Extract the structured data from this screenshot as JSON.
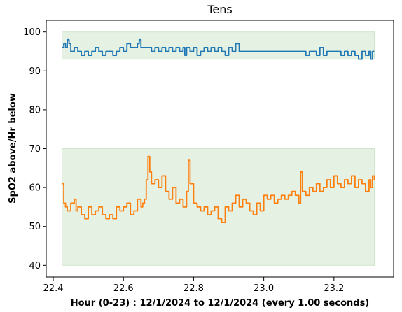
{
  "chart_data": {
    "type": "line",
    "title": "Tens",
    "xlabel": "Hour (0-23) : 12/1/2024 to 12/1/2024 (every 1.00 seconds)",
    "ylabel": "SpO2 above/Hr below",
    "xlim": [
      22.38,
      23.37
    ],
    "ylim": [
      37,
      103
    ],
    "xticks": [
      22.4,
      22.6,
      22.8,
      23.0,
      23.2
    ],
    "xtick_labels": [
      "22.4",
      "22.6",
      "22.8",
      "23.0",
      "23.2"
    ],
    "yticks": [
      40,
      50,
      60,
      70,
      80,
      90,
      100
    ],
    "ytick_labels": [
      "40",
      "50",
      "60",
      "70",
      "80",
      "90",
      "100"
    ],
    "grid": false,
    "bands": [
      {
        "x0": 22.425,
        "x1": 23.315,
        "y0": 93,
        "y1": 100,
        "color": "#e5f1e3"
      },
      {
        "x0": 22.425,
        "x1": 23.315,
        "y0": 40,
        "y1": 70,
        "color": "#e5f1e3"
      }
    ],
    "series": [
      {
        "color": "#1f77b4",
        "points": [
          [
            22.425,
            96
          ],
          [
            22.43,
            97
          ],
          [
            22.435,
            96
          ],
          [
            22.44,
            98
          ],
          [
            22.445,
            97
          ],
          [
            22.45,
            95
          ],
          [
            22.46,
            96
          ],
          [
            22.47,
            95
          ],
          [
            22.48,
            94
          ],
          [
            22.49,
            95
          ],
          [
            22.5,
            94
          ],
          [
            22.51,
            95
          ],
          [
            22.52,
            96
          ],
          [
            22.53,
            95
          ],
          [
            22.54,
            94
          ],
          [
            22.55,
            95
          ],
          [
            22.56,
            95
          ],
          [
            22.57,
            94
          ],
          [
            22.58,
            95
          ],
          [
            22.59,
            96
          ],
          [
            22.6,
            95
          ],
          [
            22.61,
            97
          ],
          [
            22.62,
            96
          ],
          [
            22.63,
            96
          ],
          [
            22.64,
            97
          ],
          [
            22.645,
            98
          ],
          [
            22.65,
            96
          ],
          [
            22.67,
            96
          ],
          [
            22.68,
            95
          ],
          [
            22.69,
            96
          ],
          [
            22.7,
            95
          ],
          [
            22.71,
            96
          ],
          [
            22.72,
            95
          ],
          [
            22.73,
            96
          ],
          [
            22.74,
            95
          ],
          [
            22.75,
            96
          ],
          [
            22.76,
            95
          ],
          [
            22.77,
            96
          ],
          [
            22.775,
            94
          ],
          [
            22.78,
            96
          ],
          [
            22.79,
            95
          ],
          [
            22.8,
            96
          ],
          [
            22.81,
            94
          ],
          [
            22.82,
            95
          ],
          [
            22.83,
            96
          ],
          [
            22.84,
            95
          ],
          [
            22.85,
            96
          ],
          [
            22.86,
            95
          ],
          [
            22.87,
            96
          ],
          [
            22.88,
            95
          ],
          [
            22.89,
            94
          ],
          [
            22.9,
            96
          ],
          [
            22.91,
            95
          ],
          [
            22.92,
            97
          ],
          [
            22.93,
            95
          ],
          [
            22.95,
            95
          ],
          [
            22.97,
            95
          ],
          [
            22.99,
            95
          ],
          [
            23.0,
            95
          ],
          [
            23.05,
            95
          ],
          [
            23.1,
            95
          ],
          [
            23.12,
            94
          ],
          [
            23.13,
            95
          ],
          [
            23.14,
            95
          ],
          [
            23.15,
            94
          ],
          [
            23.16,
            96
          ],
          [
            23.17,
            94
          ],
          [
            23.18,
            95
          ],
          [
            23.2,
            95
          ],
          [
            23.22,
            94
          ],
          [
            23.23,
            95
          ],
          [
            23.24,
            94
          ],
          [
            23.25,
            95
          ],
          [
            23.26,
            94
          ],
          [
            23.27,
            93
          ],
          [
            23.28,
            95
          ],
          [
            23.29,
            94
          ],
          [
            23.3,
            95
          ],
          [
            23.305,
            93
          ],
          [
            23.31,
            95
          ],
          [
            23.315,
            95
          ]
        ]
      },
      {
        "color": "#ff7f0e",
        "points": [
          [
            22.425,
            61
          ],
          [
            22.43,
            56
          ],
          [
            22.435,
            55
          ],
          [
            22.44,
            54
          ],
          [
            22.45,
            56
          ],
          [
            22.46,
            57
          ],
          [
            22.465,
            54
          ],
          [
            22.47,
            55
          ],
          [
            22.48,
            53
          ],
          [
            22.49,
            52
          ],
          [
            22.5,
            55
          ],
          [
            22.51,
            53
          ],
          [
            22.52,
            54
          ],
          [
            22.53,
            55
          ],
          [
            22.54,
            53
          ],
          [
            22.55,
            52
          ],
          [
            22.56,
            53
          ],
          [
            22.57,
            52
          ],
          [
            22.58,
            55
          ],
          [
            22.59,
            54
          ],
          [
            22.6,
            55
          ],
          [
            22.61,
            56
          ],
          [
            22.62,
            53
          ],
          [
            22.63,
            54
          ],
          [
            22.64,
            57
          ],
          [
            22.65,
            55
          ],
          [
            22.655,
            56
          ],
          [
            22.66,
            57
          ],
          [
            22.665,
            62
          ],
          [
            22.67,
            68
          ],
          [
            22.675,
            64
          ],
          [
            22.68,
            61
          ],
          [
            22.69,
            62
          ],
          [
            22.7,
            60
          ],
          [
            22.71,
            63
          ],
          [
            22.72,
            59
          ],
          [
            22.73,
            57
          ],
          [
            22.74,
            60
          ],
          [
            22.75,
            56
          ],
          [
            22.76,
            57
          ],
          [
            22.77,
            55
          ],
          [
            22.78,
            59
          ],
          [
            22.785,
            67
          ],
          [
            22.79,
            61
          ],
          [
            22.8,
            56
          ],
          [
            22.81,
            55
          ],
          [
            22.82,
            54
          ],
          [
            22.83,
            55
          ],
          [
            22.84,
            53
          ],
          [
            22.85,
            54
          ],
          [
            22.86,
            55
          ],
          [
            22.87,
            52
          ],
          [
            22.88,
            51
          ],
          [
            22.89,
            55
          ],
          [
            22.9,
            54
          ],
          [
            22.91,
            56
          ],
          [
            22.92,
            58
          ],
          [
            22.93,
            55
          ],
          [
            22.94,
            57
          ],
          [
            22.95,
            56
          ],
          [
            22.96,
            54
          ],
          [
            22.97,
            53
          ],
          [
            22.98,
            56
          ],
          [
            22.99,
            54
          ],
          [
            23.0,
            58
          ],
          [
            23.01,
            57
          ],
          [
            23.02,
            58
          ],
          [
            23.03,
            56
          ],
          [
            23.04,
            57
          ],
          [
            23.05,
            58
          ],
          [
            23.06,
            57
          ],
          [
            23.07,
            58
          ],
          [
            23.08,
            59
          ],
          [
            23.09,
            58
          ],
          [
            23.1,
            56
          ],
          [
            23.105,
            64
          ],
          [
            23.11,
            59
          ],
          [
            23.12,
            58
          ],
          [
            23.13,
            60
          ],
          [
            23.14,
            59
          ],
          [
            23.15,
            61
          ],
          [
            23.16,
            59
          ],
          [
            23.17,
            60
          ],
          [
            23.18,
            62
          ],
          [
            23.19,
            60
          ],
          [
            23.2,
            63
          ],
          [
            23.21,
            61
          ],
          [
            23.22,
            60
          ],
          [
            23.23,
            62
          ],
          [
            23.24,
            61
          ],
          [
            23.25,
            63
          ],
          [
            23.26,
            60
          ],
          [
            23.27,
            62
          ],
          [
            23.28,
            61
          ],
          [
            23.29,
            59
          ],
          [
            23.3,
            62
          ],
          [
            23.305,
            60
          ],
          [
            23.31,
            63
          ],
          [
            23.315,
            62
          ]
        ]
      }
    ]
  }
}
